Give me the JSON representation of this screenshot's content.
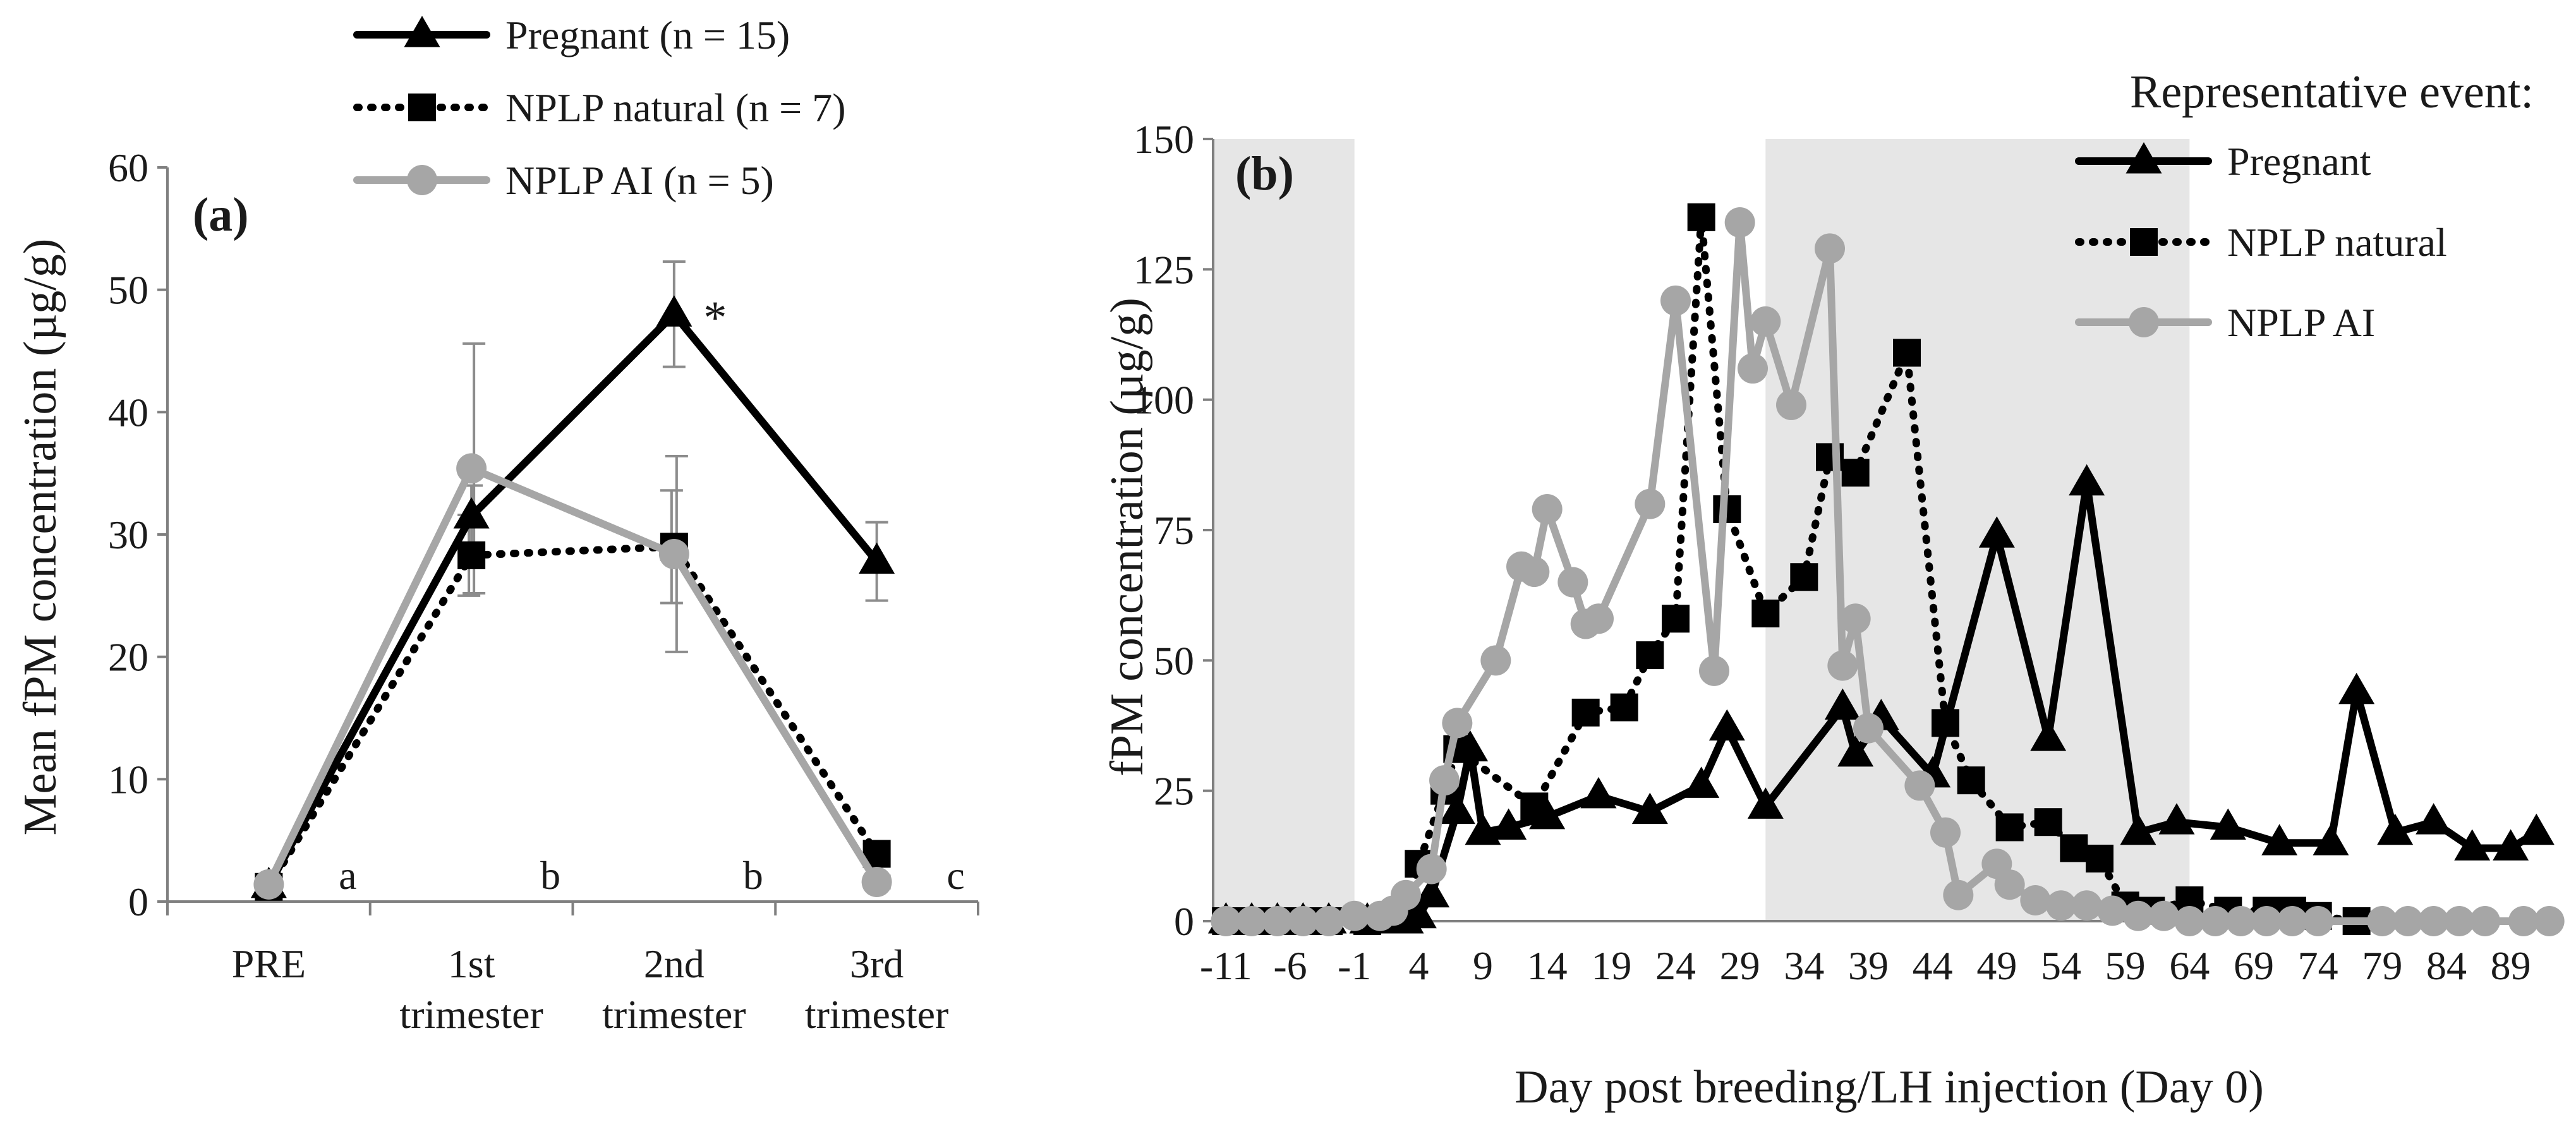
{
  "chart_data": [
    {
      "type": "line",
      "panel_label": "(a)",
      "title": "",
      "ylabel": "Mean fPM concentration (µg/g)",
      "xlabel": "",
      "ylim": [
        0,
        60
      ],
      "yticks": [
        0,
        10,
        20,
        30,
        40,
        50,
        60
      ],
      "categories": [
        {
          "line1": "PRE",
          "line2": ""
        },
        {
          "line1": "1st",
          "line2": "trimester"
        },
        {
          "line1": "2nd",
          "line2": "trimester"
        },
        {
          "line1": "3rd",
          "line2": "trimester"
        }
      ],
      "group_letters": [
        "a",
        "b",
        "b",
        "c"
      ],
      "significance_marker": "*",
      "legend_position": "top",
      "series": [
        {
          "name": "Pregnant (n = 15)",
          "marker": "triangle",
          "style": "solid",
          "color": "#000000",
          "values": [
            1.3,
            31.5,
            48.0,
            27.8
          ],
          "error": [
            0.5,
            2.5,
            4.3,
            3.2
          ]
        },
        {
          "name": "NPLP natural (n = 7)",
          "marker": "square",
          "style": "dotted",
          "color": "#000000",
          "values": [
            1.2,
            28.3,
            29.0,
            3.9
          ],
          "error": [
            0.4,
            3.3,
            4.6,
            0.8
          ]
        },
        {
          "name": "NPLP AI (n = 5)",
          "marker": "circle",
          "style": "solid",
          "color": "#a6a6a6",
          "values": [
            1.4,
            35.4,
            28.4,
            1.6
          ],
          "error": [
            0.5,
            10.2,
            8.0,
            0.5
          ]
        }
      ]
    },
    {
      "type": "line",
      "panel_label": "(b)",
      "title": "",
      "ylabel": "fPM concentration (µg/g)",
      "xlabel": "Day post breeding/LH injection (Day 0)",
      "ylim": [
        0,
        150
      ],
      "xlim": [
        -12,
        93
      ],
      "yticks": [
        0,
        25,
        50,
        75,
        100,
        125,
        150
      ],
      "xticks": [
        -11,
        -6,
        -1,
        4,
        9,
        14,
        19,
        24,
        29,
        34,
        39,
        44,
        49,
        54,
        59,
        64,
        69,
        74,
        79,
        84,
        89
      ],
      "shaded_ranges": [
        [
          -12,
          -1
        ],
        [
          31,
          64
        ]
      ],
      "legend_title": "Representative event:",
      "legend_position": "top-right",
      "series": [
        {
          "name": "Pregnant",
          "marker": "triangle",
          "style": "solid",
          "color": "#000000",
          "points": [
            [
              -11,
              0
            ],
            [
              -9,
              0
            ],
            [
              -7,
              0
            ],
            [
              -5,
              0
            ],
            [
              -3,
              0
            ],
            [
              0,
              0
            ],
            [
              1,
              0
            ],
            [
              2,
              0
            ],
            [
              3,
              0
            ],
            [
              4,
              1
            ],
            [
              5,
              5
            ],
            [
              7,
              21
            ],
            [
              8,
              33
            ],
            [
              9,
              17
            ],
            [
              11,
              18
            ],
            [
              14,
              20
            ],
            [
              18,
              24
            ],
            [
              22,
              21
            ],
            [
              26,
              26
            ],
            [
              28,
              37
            ],
            [
              31,
              22
            ],
            [
              37,
              41
            ],
            [
              38,
              32
            ],
            [
              40,
              39
            ],
            [
              44,
              28
            ],
            [
              49,
              74
            ],
            [
              53,
              35
            ],
            [
              56,
              84
            ],
            [
              60,
              17
            ],
            [
              63,
              19
            ],
            [
              67,
              18
            ],
            [
              71,
              15
            ],
            [
              75,
              15
            ],
            [
              77,
              44
            ],
            [
              80,
              17
            ],
            [
              83,
              19
            ],
            [
              86,
              14
            ],
            [
              89,
              14
            ],
            [
              91,
              17
            ]
          ]
        },
        {
          "name": "NPLP natural",
          "marker": "square",
          "style": "dotted",
          "color": "#000000",
          "points": [
            [
              -11,
              0
            ],
            [
              -9,
              0
            ],
            [
              -7,
              0
            ],
            [
              -5,
              0
            ],
            [
              -3,
              0
            ],
            [
              0,
              0
            ],
            [
              3,
              1
            ],
            [
              4,
              11
            ],
            [
              6,
              25
            ],
            [
              7,
              33
            ],
            [
              13,
              22
            ],
            [
              17,
              40
            ],
            [
              20,
              41
            ],
            [
              22,
              51
            ],
            [
              24,
              58
            ],
            [
              26,
              135
            ],
            [
              28,
              79
            ],
            [
              31,
              59
            ],
            [
              34,
              66
            ],
            [
              36,
              89
            ],
            [
              38,
              86
            ],
            [
              42,
              109
            ],
            [
              45,
              38
            ],
            [
              47,
              27
            ],
            [
              50,
              18
            ],
            [
              53,
              19
            ],
            [
              55,
              14
            ],
            [
              57,
              12
            ],
            [
              59,
              3
            ],
            [
              61,
              2
            ],
            [
              64,
              4
            ],
            [
              67,
              2
            ],
            [
              70,
              2
            ],
            [
              72,
              2
            ],
            [
              74,
              1
            ],
            [
              77,
              0
            ]
          ]
        },
        {
          "name": "NPLP AI",
          "marker": "circle",
          "style": "solid",
          "color": "#a6a6a6",
          "points": [
            [
              -11,
              0
            ],
            [
              -9,
              0
            ],
            [
              -7,
              0
            ],
            [
              -5,
              0
            ],
            [
              -3,
              0
            ],
            [
              -1,
              1
            ],
            [
              1,
              1
            ],
            [
              2,
              2
            ],
            [
              3,
              5
            ],
            [
              5,
              10
            ],
            [
              6,
              27
            ],
            [
              7,
              38
            ],
            [
              10,
              50
            ],
            [
              12,
              68
            ],
            [
              13,
              67
            ],
            [
              14,
              79
            ],
            [
              16,
              65
            ],
            [
              17,
              57
            ],
            [
              18,
              58
            ],
            [
              22,
              80
            ],
            [
              24,
              119
            ],
            [
              27,
              48
            ],
            [
              29,
              134
            ],
            [
              30,
              106
            ],
            [
              31,
              115
            ],
            [
              33,
              99
            ],
            [
              36,
              129
            ],
            [
              37,
              49
            ],
            [
              38,
              58
            ],
            [
              39,
              37
            ],
            [
              43,
              26
            ],
            [
              45,
              17
            ],
            [
              46,
              5
            ],
            [
              49,
              11
            ],
            [
              50,
              7
            ],
            [
              52,
              4
            ],
            [
              54,
              3
            ],
            [
              56,
              3
            ],
            [
              58,
              2
            ],
            [
              60,
              1
            ],
            [
              62,
              1
            ],
            [
              64,
              0
            ],
            [
              66,
              0
            ],
            [
              68,
              0
            ],
            [
              70,
              0
            ],
            [
              72,
              0
            ],
            [
              74,
              0
            ],
            [
              79,
              0
            ],
            [
              81,
              0
            ],
            [
              83,
              0
            ],
            [
              85,
              0
            ],
            [
              87,
              0
            ],
            [
              90,
              0
            ],
            [
              92,
              0
            ]
          ]
        }
      ]
    }
  ]
}
